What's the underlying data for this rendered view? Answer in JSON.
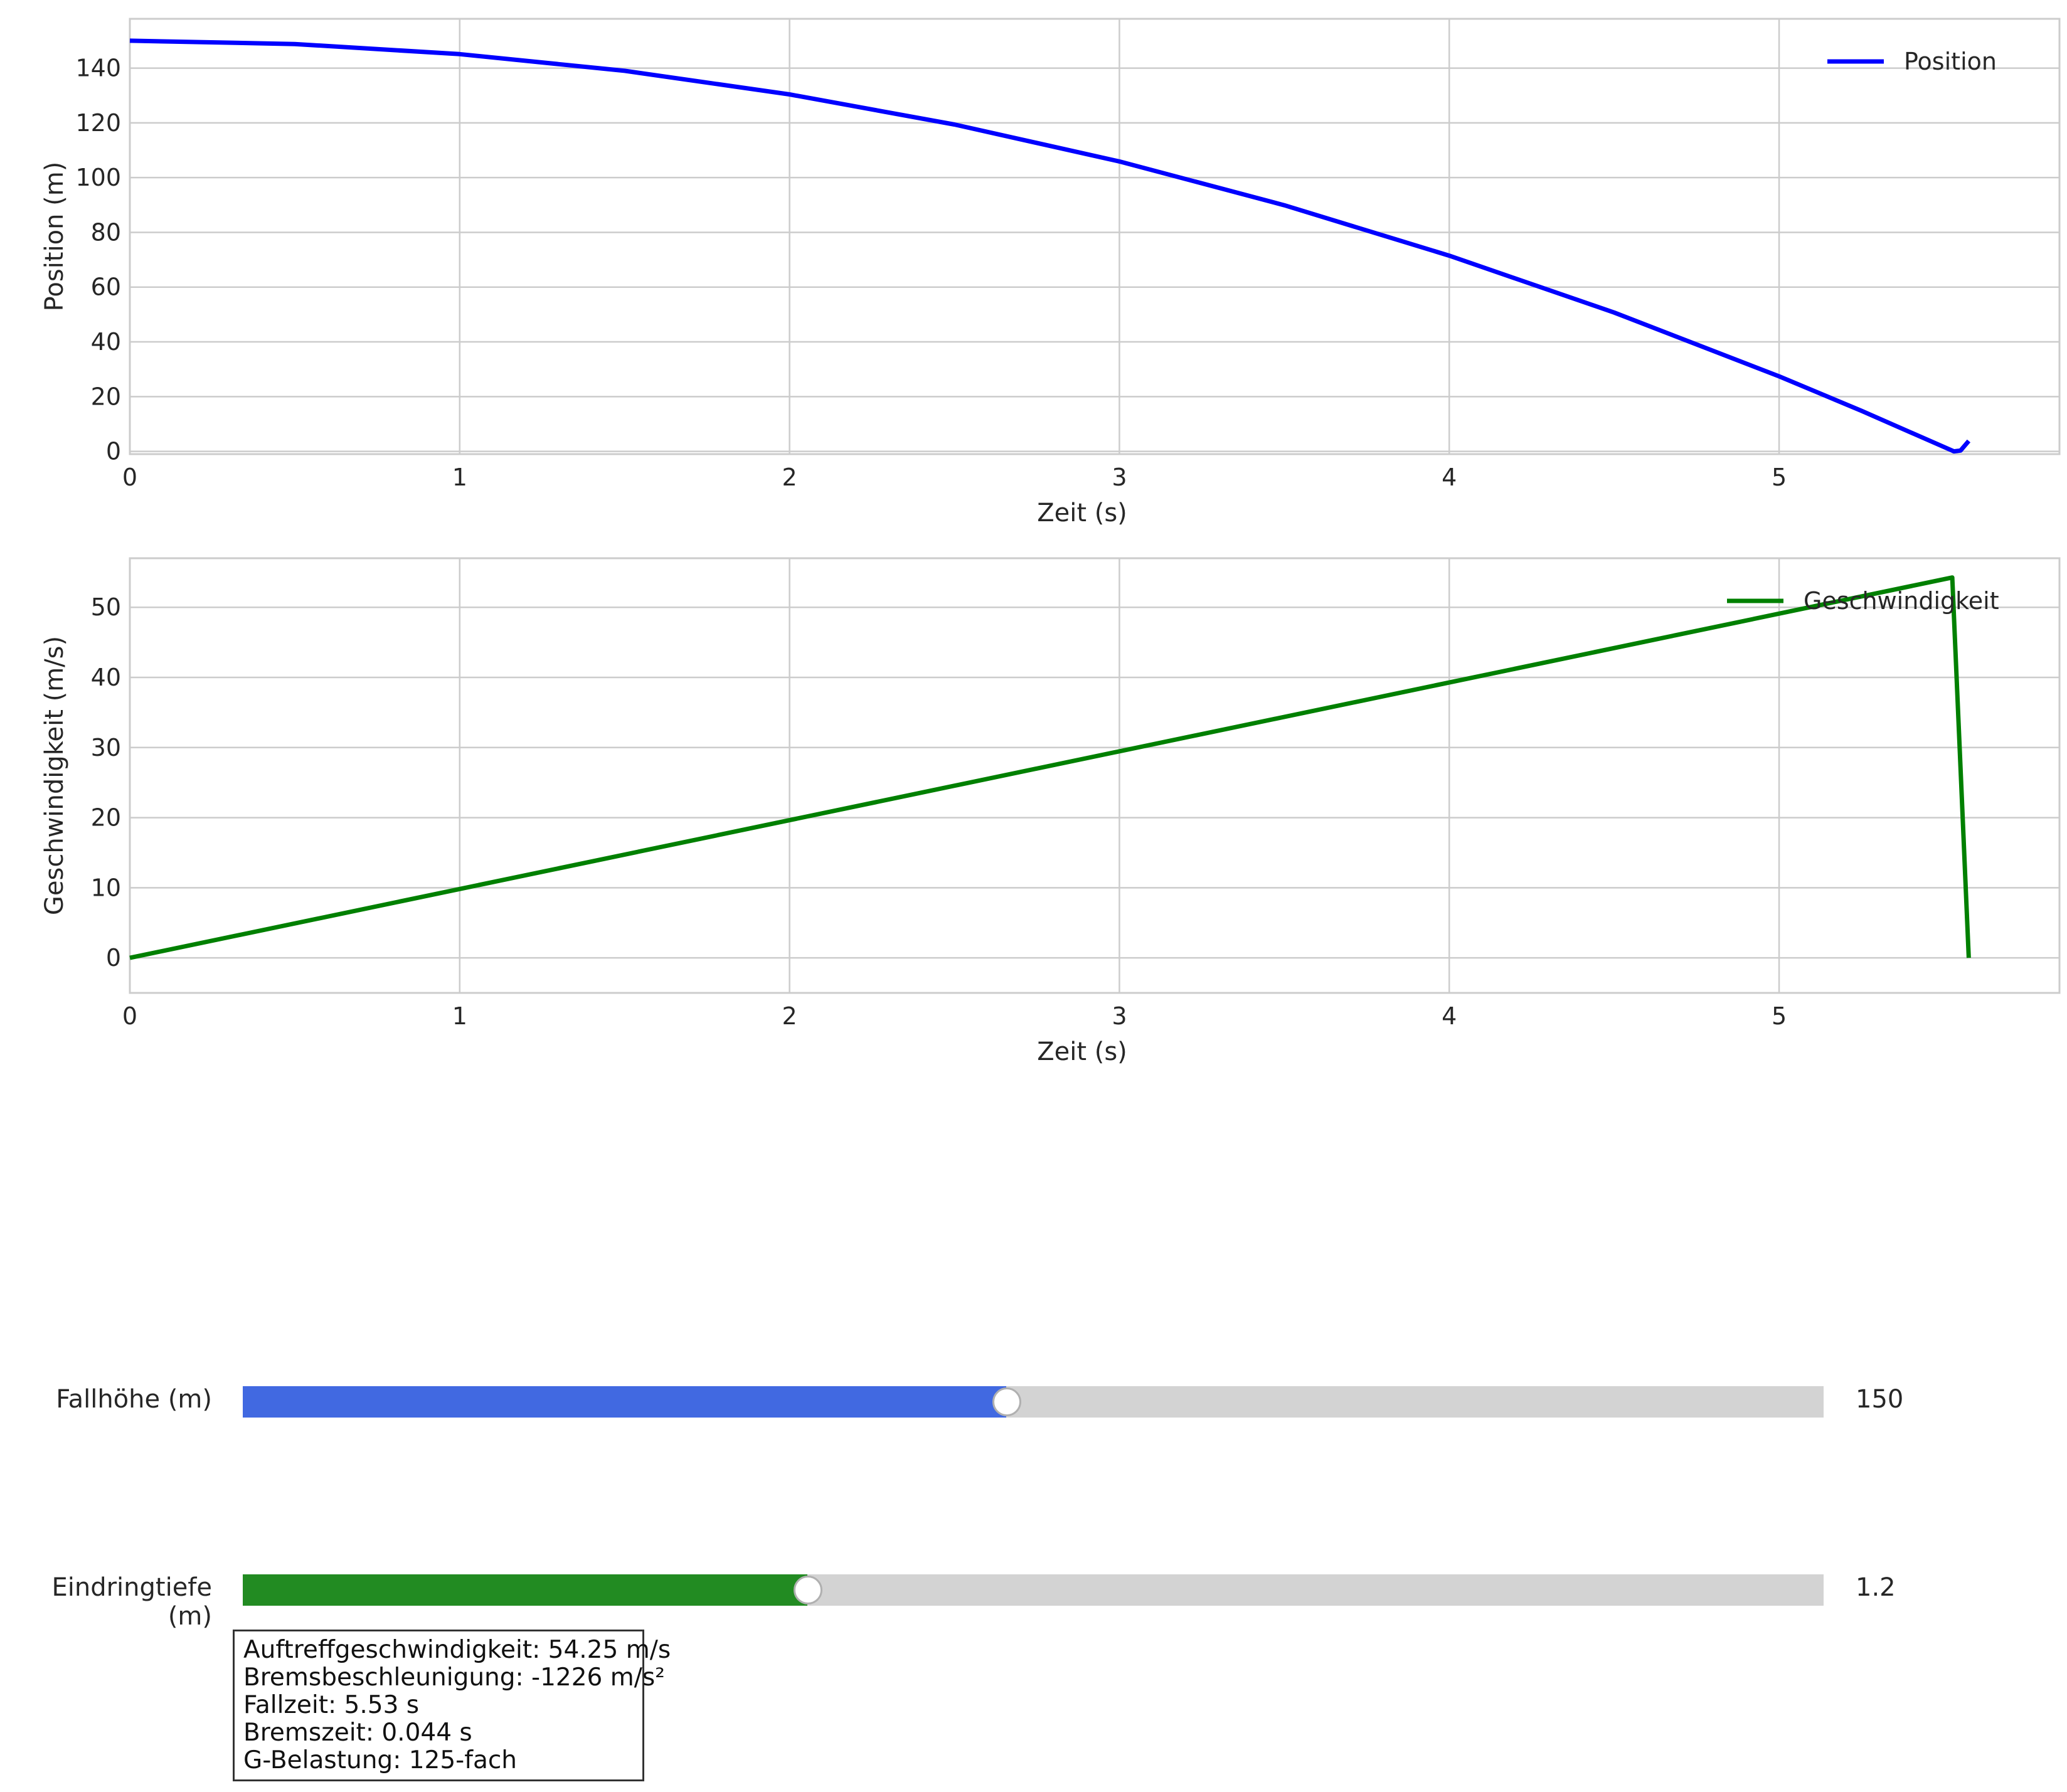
{
  "chart_data": [
    {
      "type": "line",
      "xlabel": "Zeit (s)",
      "ylabel": "Position (m)",
      "xlim": [
        0,
        5.85
      ],
      "ylim": [
        -1,
        158
      ],
      "xticks": [
        0,
        1,
        2,
        3,
        4,
        5
      ],
      "yticks": [
        0,
        20,
        40,
        60,
        80,
        100,
        120,
        140
      ],
      "grid": true,
      "legend_position": "top-right",
      "series": [
        {
          "name": "Position",
          "color": "#0000ff",
          "x": [
            0,
            0.5,
            1,
            1.5,
            2,
            2.5,
            3,
            3.5,
            4,
            4.5,
            5,
            5.25,
            5.53,
            5.55,
            5.575
          ],
          "y": [
            150,
            148.8,
            145.1,
            139.0,
            130.4,
            119.4,
            105.9,
            89.9,
            71.5,
            50.7,
            27.4,
            14.8,
            0,
            0.3,
            3.8
          ]
        }
      ]
    },
    {
      "type": "line",
      "xlabel": "Zeit (s)",
      "ylabel": "Geschwindigkeit (m/s)",
      "xlim": [
        0,
        5.85
      ],
      "ylim": [
        -5,
        57
      ],
      "xticks": [
        0,
        1,
        2,
        3,
        4,
        5
      ],
      "yticks": [
        0,
        10,
        20,
        30,
        40,
        50
      ],
      "grid": true,
      "legend_position": "top-right",
      "series": [
        {
          "name": "Geschwindigkeit",
          "color": "#008000",
          "x": [
            0,
            5.525,
            5.575
          ],
          "y": [
            0,
            54.25,
            0
          ]
        }
      ]
    }
  ],
  "sliders": [
    {
      "label": "Fallhöhe (m)",
      "value": "150",
      "fraction": 0.483,
      "color": "#4169e1"
    },
    {
      "label": "Eindringtiefe (m)",
      "value": "1.2",
      "fraction": 0.357,
      "color": "#228b22"
    }
  ],
  "info": {
    "line1": "Auftreffgeschwindigkeit: 54.25 m/s",
    "line2": "Bremsbeschleunigung: -1226 m/s²",
    "line3": "Fallzeit: 5.53 s",
    "line4": "Bremszeit: 0.044 s",
    "line5": "G-Belastung: 125-fach"
  }
}
